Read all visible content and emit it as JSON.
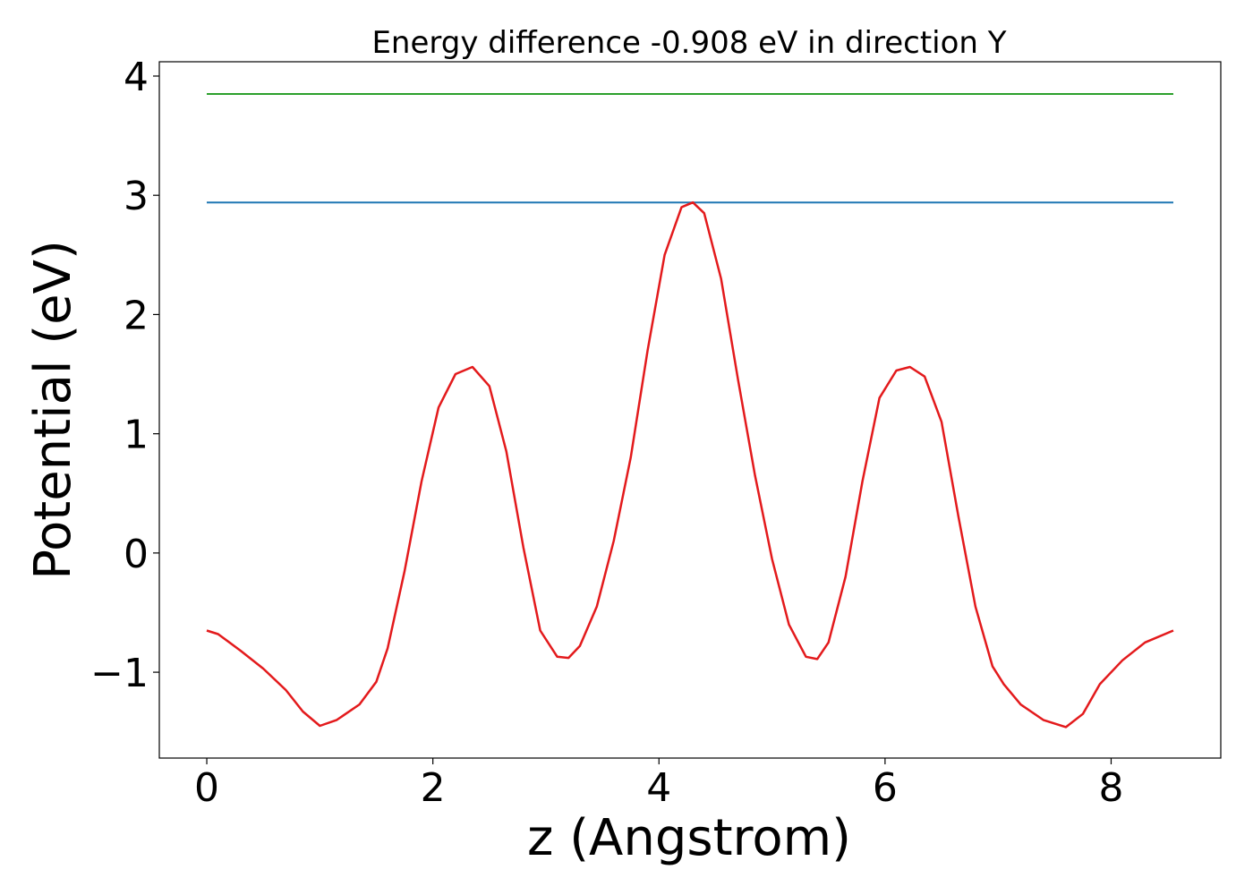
{
  "chart_data": {
    "type": "line",
    "title": "Energy difference -0.908 eV in direction Y",
    "xlabel": "z (Angstrom)",
    "ylabel": "Potential (eV)",
    "xlim": [
      -0.42,
      8.97
    ],
    "ylim": [
      -1.72,
      4.12
    ],
    "x_ticks": [
      0,
      2,
      4,
      6,
      8
    ],
    "x_tick_labels": [
      "0",
      "2",
      "4",
      "6",
      "8"
    ],
    "y_ticks": [
      -1,
      0,
      1,
      2,
      3,
      4
    ],
    "y_tick_labels": [
      "−1",
      "0",
      "1",
      "2",
      "3",
      "4"
    ],
    "grid": false,
    "legend": "none",
    "series": [
      {
        "color": "#2ca02c",
        "x": [
          0,
          8.55
        ],
        "y": [
          3.85,
          3.85
        ]
      },
      {
        "color": "#1f77b4",
        "x": [
          0,
          8.55
        ],
        "y": [
          2.94,
          2.94
        ]
      },
      {
        "color": "#e31a1c",
        "x": [
          0,
          0.1,
          0.3,
          0.5,
          0.7,
          0.85,
          1.0,
          1.15,
          1.35,
          1.5,
          1.6,
          1.75,
          1.9,
          2.05,
          2.2,
          2.35,
          2.5,
          2.65,
          2.8,
          2.95,
          3.1,
          3.2,
          3.3,
          3.45,
          3.6,
          3.75,
          3.9,
          4.05,
          4.2,
          4.3,
          4.4,
          4.55,
          4.7,
          4.85,
          5.0,
          5.15,
          5.3,
          5.4,
          5.5,
          5.65,
          5.8,
          5.95,
          6.1,
          6.22,
          6.35,
          6.5,
          6.65,
          6.8,
          6.95,
          7.05,
          7.2,
          7.4,
          7.6,
          7.75,
          7.9,
          8.1,
          8.3,
          8.55
        ],
        "y": [
          -0.65,
          -0.68,
          -0.82,
          -0.97,
          -1.15,
          -1.33,
          -1.45,
          -1.4,
          -1.27,
          -1.08,
          -0.8,
          -0.15,
          0.6,
          1.22,
          1.5,
          1.56,
          1.4,
          0.85,
          0.05,
          -0.65,
          -0.87,
          -0.88,
          -0.78,
          -0.45,
          0.1,
          0.8,
          1.7,
          2.5,
          2.9,
          2.94,
          2.85,
          2.3,
          1.45,
          0.65,
          -0.05,
          -0.6,
          -0.87,
          -0.89,
          -0.75,
          -0.2,
          0.6,
          1.3,
          1.53,
          1.56,
          1.48,
          1.1,
          0.3,
          -0.45,
          -0.95,
          -1.1,
          -1.27,
          -1.4,
          -1.46,
          -1.35,
          -1.1,
          -0.9,
          -0.75,
          -0.65
        ]
      }
    ]
  }
}
